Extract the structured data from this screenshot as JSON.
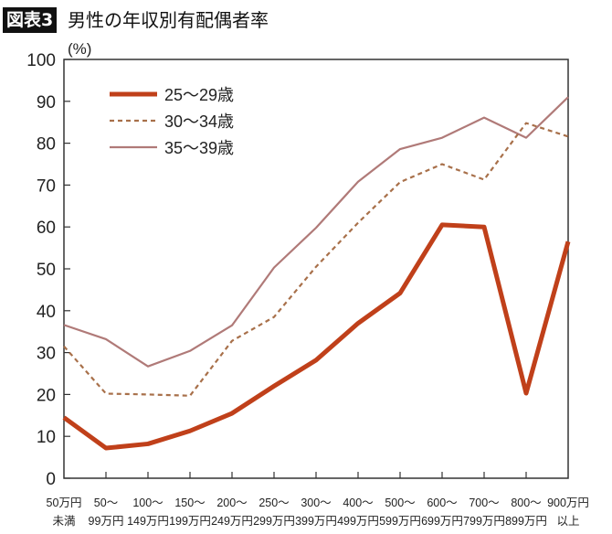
{
  "header": {
    "badge": "図表3",
    "title": "男性の年収別有配偶者率"
  },
  "chart_data": {
    "type": "line",
    "title": "男性の年収別有配偶者率",
    "ylabel": "(%)",
    "ylim": [
      0,
      100
    ],
    "yticks": [
      0,
      10,
      20,
      30,
      40,
      50,
      60,
      70,
      80,
      90,
      100
    ],
    "categories": [
      [
        "50万円",
        "未満"
      ],
      [
        "50〜",
        "99万円"
      ],
      [
        "100〜",
        "149万円"
      ],
      [
        "150〜",
        "199万円"
      ],
      [
        "200〜",
        "249万円"
      ],
      [
        "250〜",
        "299万円"
      ],
      [
        "300〜",
        "399万円"
      ],
      [
        "400〜",
        "499万円"
      ],
      [
        "500〜",
        "599万円"
      ],
      [
        "600〜",
        "699万円"
      ],
      [
        "700〜",
        "799万円"
      ],
      [
        "800〜",
        "899万円"
      ],
      [
        "900万円",
        "以上"
      ]
    ],
    "legend_position": "top-left",
    "series": [
      {
        "name": "25〜29歳",
        "color": "#c0401a",
        "style": "thick-solid",
        "values": [
          14.5,
          7.2,
          8.2,
          11.3,
          15.5,
          22,
          28.2,
          37,
          44.2,
          60.5,
          60,
          20.3,
          56.5
        ]
      },
      {
        "name": "30〜34歳",
        "color": "#a8704a",
        "style": "dashed",
        "values": [
          31.5,
          20.2,
          20,
          19.7,
          32.8,
          38.5,
          50.5,
          61,
          70.7,
          75,
          71.3,
          84.8,
          81.6
        ]
      },
      {
        "name": "35〜39歳",
        "color": "#b07a78",
        "style": "solid",
        "values": [
          36.6,
          33.2,
          26.7,
          30.4,
          36.5,
          50.3,
          59.8,
          70.8,
          78.6,
          81.3,
          86.1,
          81.3,
          91
        ]
      }
    ]
  }
}
